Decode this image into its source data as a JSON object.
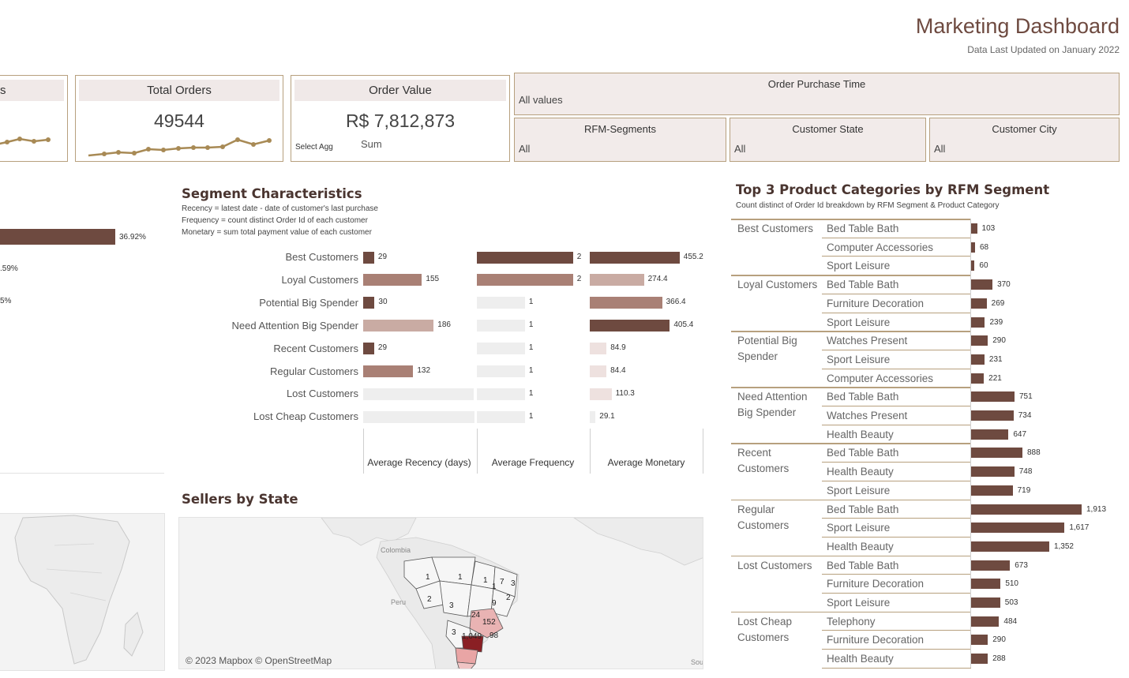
{
  "header": {
    "title": "Marketing Dashboard",
    "updated": "Data Last Updated on January 2022"
  },
  "kpis": {
    "partial_card": {
      "title_fragment": "rs"
    },
    "total_orders": {
      "title": "Total Orders",
      "value": "49544"
    },
    "order_value": {
      "title": "Order Value",
      "value": "R$ 7,812,873",
      "agg_label": "Select Agg",
      "agg_value": "Sum"
    }
  },
  "filters": {
    "order_purchase_time": {
      "title": "Order Purchase Time",
      "value": "All values"
    },
    "rfm_segments": {
      "title": "RFM-Segments",
      "value": "All"
    },
    "customer_state": {
      "title": "Customer State",
      "value": "All"
    },
    "customer_city": {
      "title": "Customer City",
      "value": "All"
    }
  },
  "left_partial": {
    "percent_labels": [
      "36.92%",
      ".59%",
      "5%"
    ]
  },
  "colors": {
    "dark": "#6e4a40",
    "medium": "#a98075",
    "light": "#c9aba3",
    "pale": "#eeeeee",
    "accent": "#b7a07e",
    "map_fill": "#e9a5a5",
    "map_dark": "#8a1f24"
  },
  "segment_chart": {
    "title": "Segment Characteristics",
    "notes": [
      "Recency = latest date - date of customer's last purchase",
      "Frequency = count distinct Order Id of each customer",
      "Monetary = sum total payment value of each customer"
    ],
    "axis_titles": [
      "Average Recency (days)",
      "Average Frequency",
      "Average Monetary"
    ]
  },
  "chart_data": [
    {
      "type": "bar",
      "title": "Segment Characteristics",
      "categories": [
        "Best Customers",
        "Loyal Customers",
        "Potential Big Spender",
        "Need Attention Big Spender",
        "Recent Customers",
        "Regular Customers",
        "Lost Customers",
        "Lost Cheap Customers"
      ],
      "series": [
        {
          "name": "Average Recency (days)",
          "values": [
            29,
            155,
            30,
            186,
            29,
            132,
            291,
            294
          ],
          "labels": [
            "29",
            "155",
            "30",
            "186",
            "29",
            "132",
            "291",
            "294"
          ],
          "shades": [
            "dark",
            "medium",
            "dark",
            "light",
            "dark",
            "medium",
            "pale",
            "pale"
          ]
        },
        {
          "name": "Average Frequency",
          "values": [
            2,
            2,
            1,
            1,
            1,
            1,
            1,
            1
          ],
          "labels": [
            "2",
            "2",
            "1",
            "1",
            "1",
            "1",
            "1",
            "1"
          ],
          "shades": [
            "dark",
            "medium",
            "pale",
            "pale",
            "pale",
            "pale",
            "pale",
            "pale"
          ]
        },
        {
          "name": "Average Monetary",
          "values": [
            455.2,
            274.4,
            366.4,
            405.4,
            84.9,
            84.4,
            110.3,
            29.1
          ],
          "labels": [
            "455.2",
            "274.4",
            "366.4",
            "405.4",
            "84.9",
            "84.4",
            "110.3",
            "29.1"
          ],
          "shades": [
            "dark",
            "light",
            "medium",
            "dark",
            "pale2",
            "pale2",
            "pale2",
            "pale"
          ]
        }
      ]
    },
    {
      "type": "bar",
      "title": "Top 3 Product Categories by RFM Segment",
      "subtitle": "Count distinct of Order Id breakdown by RFM Segment & Product Category",
      "groups": [
        {
          "segment": "Best Customers",
          "rows": [
            {
              "category": "Bed Table Bath",
              "value": 103,
              "label": "103"
            },
            {
              "category": "Computer Accessories",
              "value": 68,
              "label": "68"
            },
            {
              "category": "Sport Leisure",
              "value": 60,
              "label": "60"
            }
          ]
        },
        {
          "segment": "Loyal Customers",
          "rows": [
            {
              "category": "Bed Table Bath",
              "value": 370,
              "label": "370"
            },
            {
              "category": "Furniture Decoration",
              "value": 269,
              "label": "269"
            },
            {
              "category": "Sport Leisure",
              "value": 239,
              "label": "239"
            }
          ]
        },
        {
          "segment": "Potential Big Spender",
          "rows": [
            {
              "category": "Watches Present",
              "value": 290,
              "label": "290"
            },
            {
              "category": "Sport Leisure",
              "value": 231,
              "label": "231"
            },
            {
              "category": "Computer Accessories",
              "value": 221,
              "label": "221"
            }
          ]
        },
        {
          "segment": "Need Attention Big Spender",
          "rows": [
            {
              "category": "Bed Table Bath",
              "value": 751,
              "label": "751"
            },
            {
              "category": "Watches Present",
              "value": 734,
              "label": "734"
            },
            {
              "category": "Health Beauty",
              "value": 647,
              "label": "647"
            }
          ]
        },
        {
          "segment": "Recent Customers",
          "rows": [
            {
              "category": "Bed Table Bath",
              "value": 888,
              "label": "888"
            },
            {
              "category": "Health Beauty",
              "value": 748,
              "label": "748"
            },
            {
              "category": "Sport Leisure",
              "value": 719,
              "label": "719"
            }
          ]
        },
        {
          "segment": "Regular Customers",
          "rows": [
            {
              "category": "Bed Table Bath",
              "value": 1913,
              "label": "1,913"
            },
            {
              "category": "Sport Leisure",
              "value": 1617,
              "label": "1,617"
            },
            {
              "category": "Health Beauty",
              "value": 1352,
              "label": "1,352"
            }
          ]
        },
        {
          "segment": "Lost Customers",
          "rows": [
            {
              "category": "Bed Table Bath",
              "value": 673,
              "label": "673"
            },
            {
              "category": "Furniture Decoration",
              "value": 510,
              "label": "510"
            },
            {
              "category": "Sport Leisure",
              "value": 503,
              "label": "503"
            }
          ]
        },
        {
          "segment": "Lost Cheap Customers",
          "rows": [
            {
              "category": "Telephony",
              "value": 484,
              "label": "484"
            },
            {
              "category": "Furniture Decoration",
              "value": 290,
              "label": "290"
            },
            {
              "category": "Health Beauty",
              "value": 288,
              "label": "288"
            }
          ]
        }
      ]
    }
  ],
  "sellers_map": {
    "title": "Sellers by State",
    "attribution": "© 2023 Mapbox © OpenStreetMap",
    "place_labels": [
      "Colombia",
      "Peru",
      "Sou"
    ],
    "state_counts": [
      "1",
      "1",
      "1",
      "1",
      "7",
      "3",
      "2",
      "2",
      "3",
      "9",
      "24",
      "152",
      "3",
      "1,049",
      "98"
    ]
  }
}
